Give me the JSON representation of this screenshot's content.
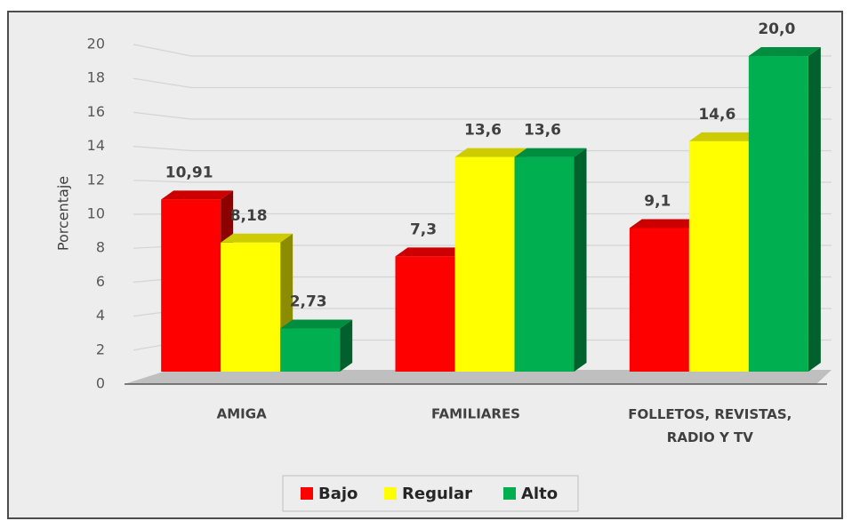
{
  "chart_data": {
    "type": "bar3d",
    "y_label": "Porcentaje",
    "categories": [
      "AMIGA",
      "FAMILIARES",
      "FOLLETOS, REVISTAS, RADIO Y TV"
    ],
    "series": [
      {
        "name": "Bajo",
        "color": "#ff0000",
        "values": [
          10.91,
          7.3,
          9.1
        ],
        "value_labels": [
          "10,91",
          "7,3",
          "9,1"
        ]
      },
      {
        "name": "Regular",
        "color": "#ffff00",
        "values": [
          8.18,
          13.6,
          14.6
        ],
        "value_labels": [
          "8,18",
          "13,6",
          "14,6"
        ]
      },
      {
        "name": "Alto",
        "color": "#00b050",
        "values": [
          2.73,
          13.6,
          20.0
        ],
        "value_labels": [
          "2,73",
          "13,6",
          "20,0"
        ]
      }
    ],
    "ylim": [
      0,
      20
    ],
    "yticks": [
      0,
      2,
      4,
      6,
      8,
      10,
      12,
      14,
      16,
      18,
      20
    ],
    "grid": true,
    "legend": "bottom"
  }
}
